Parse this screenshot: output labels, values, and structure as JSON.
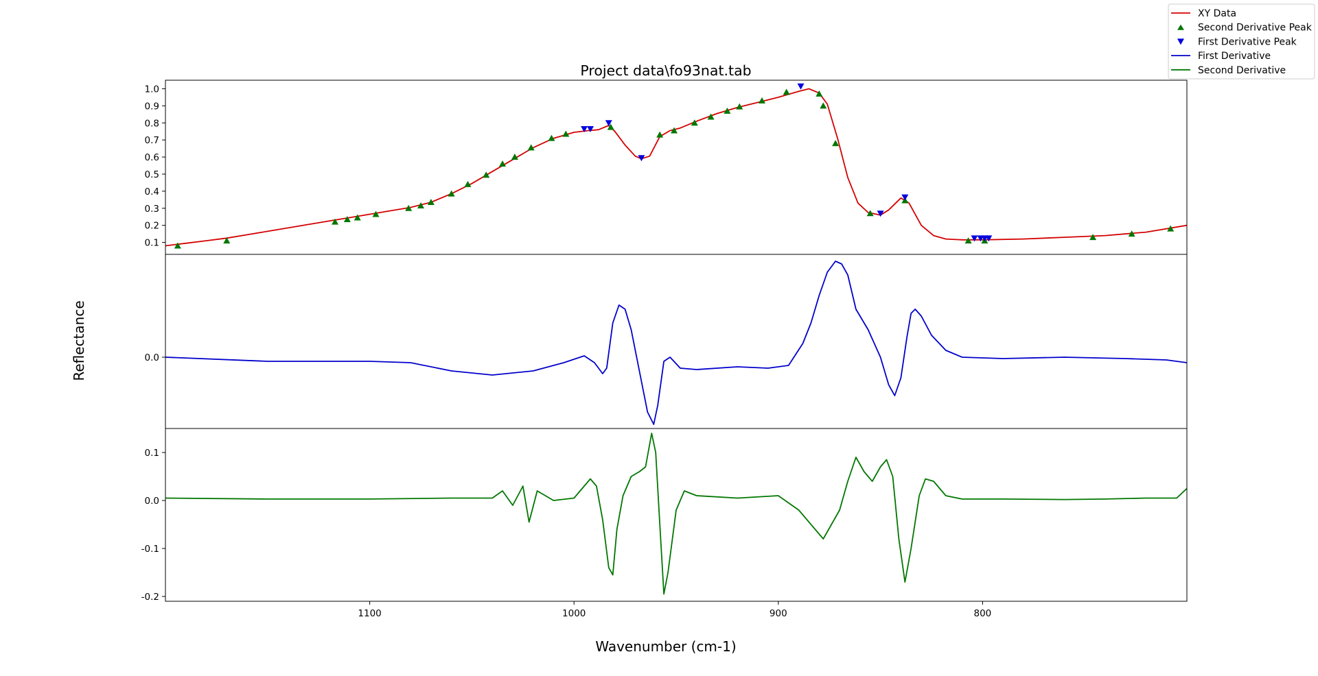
{
  "chart_data": {
    "type": "line",
    "title": "Project data\\fo93nat.tab",
    "xlabel": "Wavenumber (cm-1)",
    "ylabel": "Reflectance",
    "xlim": [
      1200,
      700
    ],
    "x_inverted": true,
    "x_ticks": [
      1100,
      1000,
      900,
      800
    ],
    "grid": false,
    "legend_placement": "top-right",
    "legend": [
      {
        "name": "XY Data",
        "kind": "line",
        "color": "#d40000"
      },
      {
        "name": "Second Derivative Peak",
        "kind": "triangle-up",
        "color": "#007700"
      },
      {
        "name": "First Derivative Peak",
        "kind": "triangle-down",
        "color": "#0000dd"
      },
      {
        "name": "First Derivative",
        "kind": "line",
        "color": "#0000cc"
      },
      {
        "name": "Second Derivative",
        "kind": "line",
        "color": "#007700"
      }
    ],
    "panels": [
      {
        "name": "reflectance",
        "ylim": [
          0.03,
          1.05
        ],
        "y_ticks": [
          0.1,
          0.2,
          0.3,
          0.4,
          0.5,
          0.6,
          0.7,
          0.8,
          0.9,
          1.0
        ],
        "series": [
          {
            "name": "XY Data",
            "color": "#d40000",
            "points": [
              [
                1200,
                0.08
              ],
              [
                1190,
                0.095
              ],
              [
                1180,
                0.11
              ],
              [
                1170,
                0.125
              ],
              [
                1160,
                0.145
              ],
              [
                1150,
                0.165
              ],
              [
                1140,
                0.185
              ],
              [
                1130,
                0.205
              ],
              [
                1120,
                0.225
              ],
              [
                1110,
                0.245
              ],
              [
                1100,
                0.265
              ],
              [
                1090,
                0.285
              ],
              [
                1080,
                0.305
              ],
              [
                1070,
                0.335
              ],
              [
                1060,
                0.385
              ],
              [
                1050,
                0.445
              ],
              [
                1040,
                0.515
              ],
              [
                1030,
                0.585
              ],
              [
                1020,
                0.655
              ],
              [
                1010,
                0.71
              ],
              [
                1000,
                0.745
              ],
              [
                993,
                0.755
              ],
              [
                988,
                0.76
              ],
              [
                983,
                0.785
              ],
              [
                980,
                0.75
              ],
              [
                975,
                0.67
              ],
              [
                970,
                0.605
              ],
              [
                967,
                0.59
              ],
              [
                963,
                0.605
              ],
              [
                958,
                0.72
              ],
              [
                953,
                0.755
              ],
              [
                948,
                0.77
              ],
              [
                940,
                0.81
              ],
              [
                930,
                0.855
              ],
              [
                920,
                0.89
              ],
              [
                910,
                0.92
              ],
              [
                900,
                0.95
              ],
              [
                890,
                0.985
              ],
              [
                885,
                1.0
              ],
              [
                880,
                0.975
              ],
              [
                876,
                0.91
              ],
              [
                871,
                0.71
              ],
              [
                866,
                0.48
              ],
              [
                861,
                0.33
              ],
              [
                856,
                0.275
              ],
              [
                850,
                0.26
              ],
              [
                846,
                0.29
              ],
              [
                840,
                0.36
              ],
              [
                836,
                0.33
              ],
              [
                830,
                0.2
              ],
              [
                824,
                0.14
              ],
              [
                818,
                0.12
              ],
              [
                810,
                0.115
              ],
              [
                800,
                0.115
              ],
              [
                780,
                0.12
              ],
              [
                760,
                0.13
              ],
              [
                740,
                0.14
              ],
              [
                720,
                0.16
              ],
              [
                700,
                0.2
              ]
            ]
          },
          {
            "name": "Second Derivative Peak",
            "marker": "triangle-up",
            "color": "#007700",
            "points": [
              [
                1194,
                0.08
              ],
              [
                1170,
                0.11
              ],
              [
                1117,
                0.22
              ],
              [
                1111,
                0.235
              ],
              [
                1106,
                0.245
              ],
              [
                1097,
                0.265
              ],
              [
                1081,
                0.3
              ],
              [
                1075,
                0.315
              ],
              [
                1070,
                0.335
              ],
              [
                1060,
                0.385
              ],
              [
                1052,
                0.44
              ],
              [
                1043,
                0.495
              ],
              [
                1035,
                0.56
              ],
              [
                1029,
                0.6
              ],
              [
                1021,
                0.655
              ],
              [
                1011,
                0.71
              ],
              [
                1004,
                0.735
              ],
              [
                982,
                0.775
              ],
              [
                958,
                0.73
              ],
              [
                951,
                0.755
              ],
              [
                941,
                0.8
              ],
              [
                933,
                0.835
              ],
              [
                925,
                0.87
              ],
              [
                919,
                0.895
              ],
              [
                908,
                0.93
              ],
              [
                896,
                0.98
              ],
              [
                880,
                0.97
              ],
              [
                878,
                0.9
              ],
              [
                872,
                0.68
              ],
              [
                855,
                0.27
              ],
              [
                838,
                0.345
              ],
              [
                807,
                0.11
              ],
              [
                799,
                0.11
              ],
              [
                746,
                0.13
              ],
              [
                727,
                0.15
              ],
              [
                708,
                0.18
              ]
            ]
          },
          {
            "name": "First Derivative Peak",
            "marker": "triangle-down",
            "color": "#0000dd",
            "points": [
              [
                995,
                0.765
              ],
              [
                992,
                0.765
              ],
              [
                983,
                0.8
              ],
              [
                967,
                0.595
              ],
              [
                889,
                1.015
              ],
              [
                850,
                0.27
              ],
              [
                838,
                0.365
              ],
              [
                804,
                0.125
              ],
              [
                801,
                0.125
              ],
              [
                799,
                0.125
              ],
              [
                797,
                0.125
              ]
            ]
          }
        ]
      },
      {
        "name": "first-derivative",
        "ylim": [
          -0.052,
          0.075
        ],
        "y_ticks": [
          0.0
        ],
        "series": [
          {
            "name": "First Derivative",
            "color": "#0000cc",
            "points": [
              [
                1200,
                0.0
              ],
              [
                1150,
                -0.003
              ],
              [
                1100,
                -0.003
              ],
              [
                1080,
                -0.004
              ],
              [
                1060,
                -0.01
              ],
              [
                1040,
                -0.013
              ],
              [
                1020,
                -0.01
              ],
              [
                1005,
                -0.004
              ],
              [
                995,
                0.001
              ],
              [
                990,
                -0.004
              ],
              [
                986,
                -0.012
              ],
              [
                984,
                -0.008
              ],
              [
                981,
                0.025
              ],
              [
                978,
                0.038
              ],
              [
                975,
                0.035
              ],
              [
                972,
                0.02
              ],
              [
                968,
                -0.01
              ],
              [
                964,
                -0.04
              ],
              [
                961,
                -0.049
              ],
              [
                959,
                -0.035
              ],
              [
                956,
                -0.003
              ],
              [
                953,
                0.0
              ],
              [
                948,
                -0.008
              ],
              [
                940,
                -0.009
              ],
              [
                920,
                -0.007
              ],
              [
                905,
                -0.008
              ],
              [
                895,
                -0.006
              ],
              [
                888,
                0.01
              ],
              [
                884,
                0.025
              ],
              [
                880,
                0.045
              ],
              [
                876,
                0.062
              ],
              [
                872,
                0.07
              ],
              [
                869,
                0.068
              ],
              [
                866,
                0.06
              ],
              [
                862,
                0.035
              ],
              [
                856,
                0.02
              ],
              [
                850,
                0.0
              ],
              [
                846,
                -0.02
              ],
              [
                843,
                -0.028
              ],
              [
                840,
                -0.015
              ],
              [
                837,
                0.015
              ],
              [
                835,
                0.032
              ],
              [
                833,
                0.035
              ],
              [
                830,
                0.03
              ],
              [
                825,
                0.016
              ],
              [
                818,
                0.005
              ],
              [
                810,
                0.0
              ],
              [
                790,
                -0.001
              ],
              [
                760,
                0.0
              ],
              [
                730,
                -0.001
              ],
              [
                710,
                -0.002
              ],
              [
                700,
                -0.004
              ]
            ]
          }
        ]
      },
      {
        "name": "second-derivative",
        "ylim": [
          -0.21,
          0.15
        ],
        "y_ticks": [
          -0.2,
          -0.1,
          0.0,
          0.1
        ],
        "series": [
          {
            "name": "Second Derivative",
            "color": "#007700",
            "points": [
              [
                1200,
                0.005
              ],
              [
                1150,
                0.003
              ],
              [
                1100,
                0.003
              ],
              [
                1060,
                0.005
              ],
              [
                1040,
                0.005
              ],
              [
                1035,
                0.02
              ],
              [
                1030,
                -0.01
              ],
              [
                1025,
                0.03
              ],
              [
                1022,
                -0.045
              ],
              [
                1018,
                0.02
              ],
              [
                1010,
                0.0
              ],
              [
                1000,
                0.005
              ],
              [
                992,
                0.045
              ],
              [
                989,
                0.03
              ],
              [
                986,
                -0.04
              ],
              [
                983,
                -0.14
              ],
              [
                981,
                -0.155
              ],
              [
                979,
                -0.06
              ],
              [
                976,
                0.01
              ],
              [
                972,
                0.05
              ],
              [
                968,
                0.06
              ],
              [
                965,
                0.07
              ],
              [
                962,
                0.14
              ],
              [
                960,
                0.1
              ],
              [
                958,
                -0.05
              ],
              [
                956,
                -0.195
              ],
              [
                954,
                -0.15
              ],
              [
                950,
                -0.02
              ],
              [
                946,
                0.02
              ],
              [
                940,
                0.01
              ],
              [
                920,
                0.005
              ],
              [
                900,
                0.01
              ],
              [
                890,
                -0.02
              ],
              [
                882,
                -0.06
              ],
              [
                878,
                -0.08
              ],
              [
                874,
                -0.05
              ],
              [
                870,
                -0.02
              ],
              [
                866,
                0.04
              ],
              [
                862,
                0.09
              ],
              [
                858,
                0.06
              ],
              [
                854,
                0.04
              ],
              [
                850,
                0.07
              ],
              [
                847,
                0.085
              ],
              [
                844,
                0.05
              ],
              [
                841,
                -0.08
              ],
              [
                838,
                -0.17
              ],
              [
                835,
                -0.1
              ],
              [
                831,
                0.01
              ],
              [
                828,
                0.045
              ],
              [
                824,
                0.04
              ],
              [
                818,
                0.01
              ],
              [
                810,
                0.003
              ],
              [
                790,
                0.003
              ],
              [
                760,
                0.002
              ],
              [
                740,
                0.003
              ],
              [
                720,
                0.005
              ],
              [
                705,
                0.005
              ],
              [
                700,
                0.025
              ]
            ]
          }
        ]
      }
    ]
  }
}
